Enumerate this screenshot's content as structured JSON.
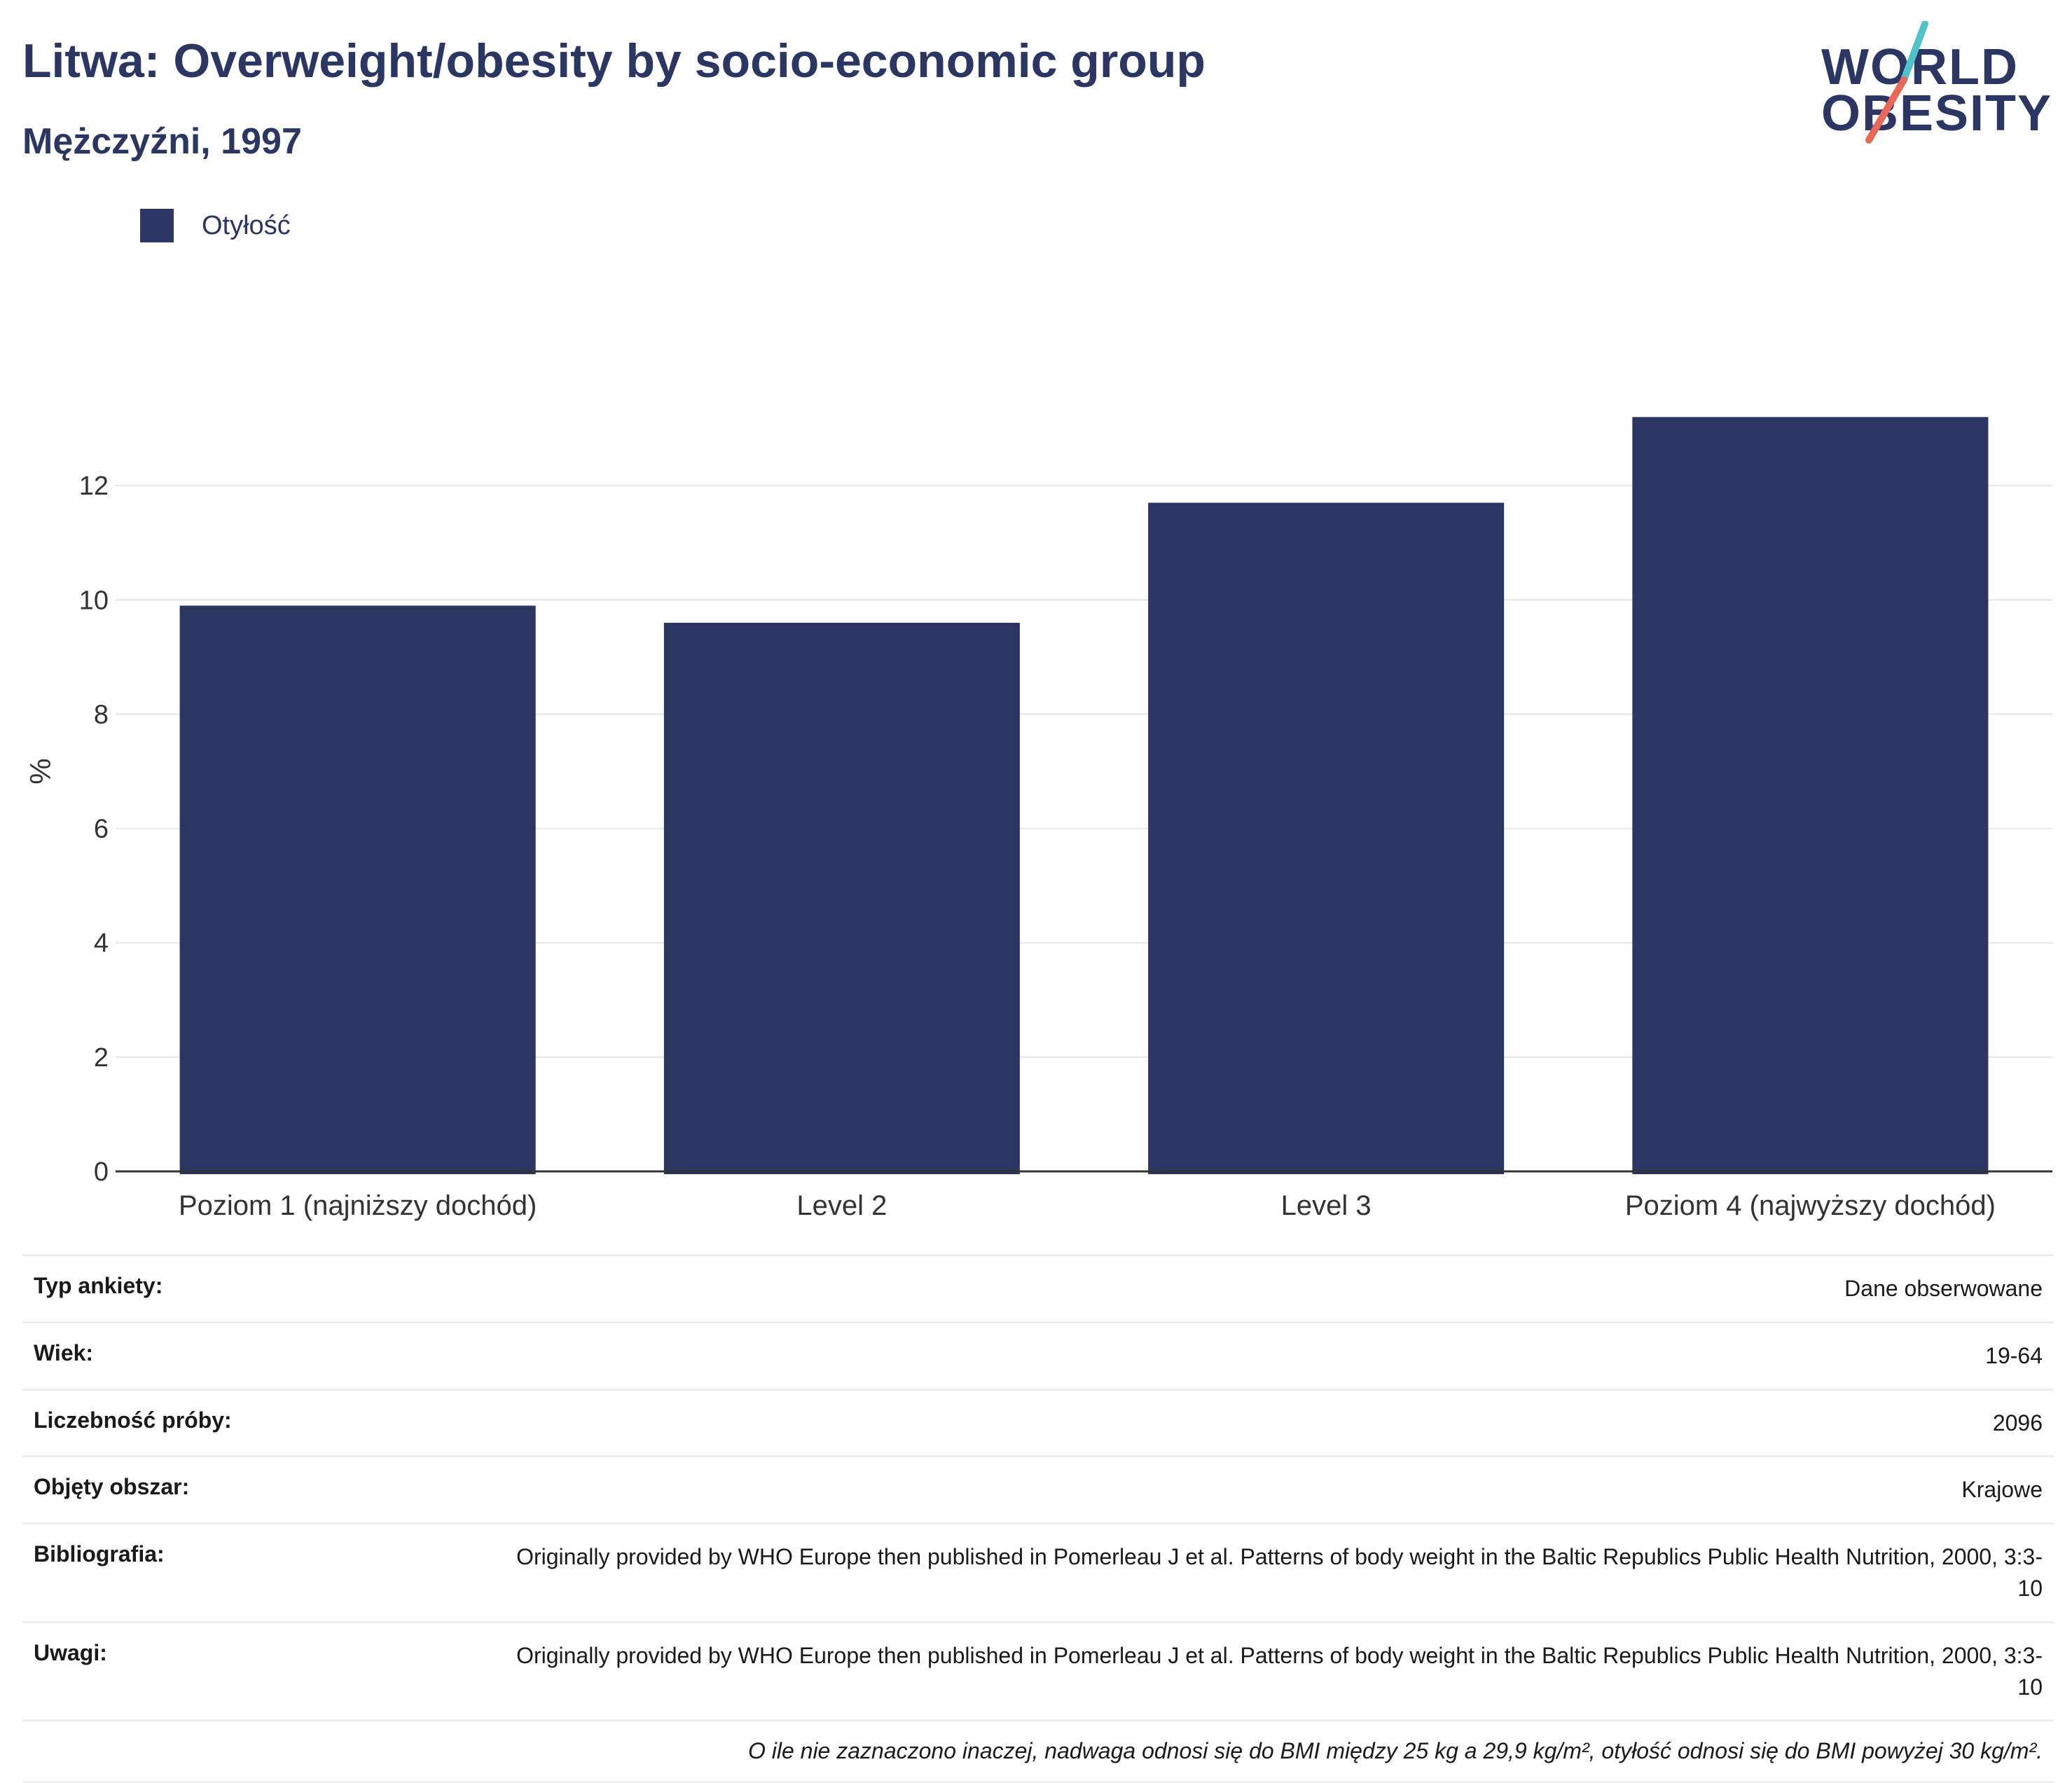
{
  "header": {
    "title": "Litwa: Overweight/obesity by socio-economic group",
    "subtitle": "Mężczyźni, 1997"
  },
  "logo": {
    "line1": "WORLD",
    "line2": "OBESITY",
    "slash_colors": [
      "#4fc3c8",
      "#e8685a"
    ]
  },
  "colors": {
    "bar": "#2b3762",
    "grid": "#e6e6e6",
    "axis": "#333333"
  },
  "chart_data": {
    "type": "bar",
    "categories": [
      "Poziom 1 (najniższy dochód)",
      "Level 2",
      "Level 3",
      "Poziom 4 (najwyższy dochód)"
    ],
    "series": [
      {
        "name": "Otyłość",
        "values": [
          9.9,
          9.6,
          11.7,
          13.2
        ]
      }
    ],
    "ylabel": "%",
    "xlabel": "",
    "ylim": [
      0,
      14
    ],
    "yticks": [
      0,
      2,
      4,
      6,
      8,
      10,
      12
    ],
    "grid": true,
    "legend": "top-left"
  },
  "meta": [
    {
      "key": "Typ ankiety:",
      "value": "Dane obserwowane"
    },
    {
      "key": "Wiek:",
      "value": "19-64"
    },
    {
      "key": "Liczebność próby:",
      "value": "2096"
    },
    {
      "key": "Objęty obszar:",
      "value": "Krajowe"
    },
    {
      "key": "Bibliografia:",
      "value": "Originally provided by WHO Europe then published in Pomerleau J et al. Patterns of body weight in the Baltic Republics Public Health Nutrition, 2000, 3:3-10"
    },
    {
      "key": "Uwagi:",
      "value": "Originally provided by WHO Europe then published in Pomerleau J et al. Patterns of body weight in the Baltic Republics Public Health Nutrition, 2000, 3:3-10"
    }
  ],
  "footnote": "O ile nie zaznaczono inaczej, nadwaga odnosi się do BMI między 25 kg a 29,9 kg/m², otyłość odnosi się do BMI powyżej 30 kg/m²."
}
